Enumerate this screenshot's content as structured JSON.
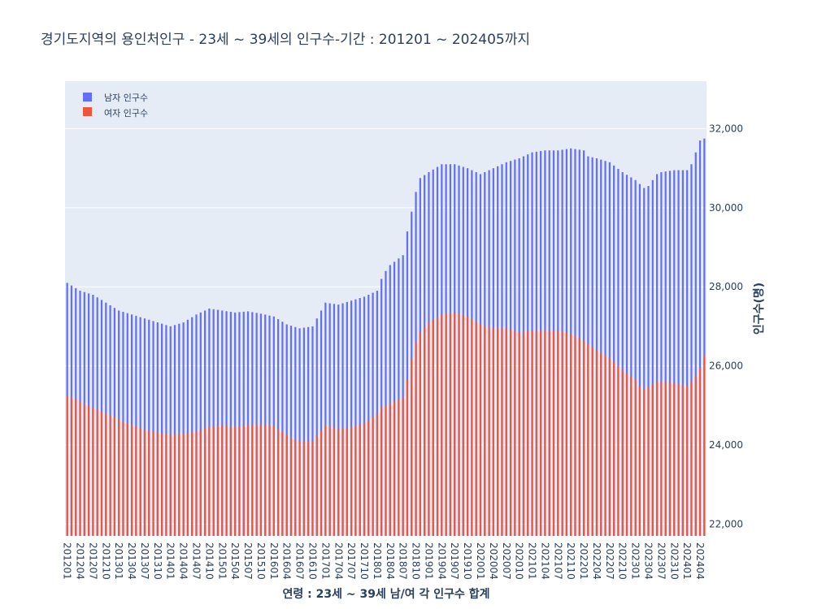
{
  "chart_data": {
    "type": "bar",
    "barmode": "overlay",
    "title": "경기도지역의 용인처인구 - 23세 ~ 39세의 인구수-기간 : 201201 ~ 202405까지",
    "xlabel": "연령 : 23세 ~ 39세 남/여 각 인구수 합계",
    "ylabel": "인구수(명)",
    "yaxis_side": "right",
    "ylim": [
      21700,
      33200
    ],
    "yticks": [
      22000,
      24000,
      26000,
      28000,
      30000,
      32000
    ],
    "ytick_labels": [
      "22,000",
      "24,000",
      "26,000",
      "28,000",
      "30,000",
      "32,000"
    ],
    "x_tick_labels": [
      "201201",
      "201204",
      "201207",
      "201210",
      "201301",
      "201304",
      "201307",
      "201310",
      "201401",
      "201404",
      "201407",
      "201410",
      "201501",
      "201504",
      "201507",
      "201510",
      "201601",
      "201604",
      "201607",
      "201610",
      "201701",
      "201704",
      "201707",
      "201710",
      "201801",
      "201804",
      "201807",
      "201810",
      "201901",
      "201904",
      "201907",
      "201910",
      "202001",
      "202004",
      "202007",
      "202010",
      "202101",
      "202104",
      "202107",
      "202110",
      "202201",
      "202204",
      "202207",
      "202210",
      "202301",
      "202304",
      "202307",
      "202310",
      "202401",
      "202404"
    ],
    "legend_position": "top-left",
    "colors": {
      "male": "#636efa",
      "female": "#ef553b",
      "plot_bg": "#e5ecf6",
      "grid": "#ffffff",
      "text": "#2a3f5f"
    },
    "start_month": "201201",
    "end_month": "202405",
    "series": [
      {
        "name": "남자 인구수",
        "color": "#636efa",
        "anchors": [
          [
            "201201",
            28100
          ],
          [
            "201204",
            27900
          ],
          [
            "201207",
            27800
          ],
          [
            "201210",
            27600
          ],
          [
            "201301",
            27400
          ],
          [
            "201304",
            27300
          ],
          [
            "201307",
            27200
          ],
          [
            "201310",
            27100
          ],
          [
            "201401",
            27000
          ],
          [
            "201404",
            27100
          ],
          [
            "201407",
            27300
          ],
          [
            "201410",
            27450
          ],
          [
            "201501",
            27400
          ],
          [
            "201504",
            27350
          ],
          [
            "201507",
            27380
          ],
          [
            "201510",
            27320
          ],
          [
            "201601",
            27250
          ],
          [
            "201604",
            27050
          ],
          [
            "201607",
            26950
          ],
          [
            "201610",
            27000
          ],
          [
            "201612",
            27400
          ],
          [
            "201701",
            27600
          ],
          [
            "201704",
            27550
          ],
          [
            "201707",
            27650
          ],
          [
            "201710",
            27750
          ],
          [
            "201801",
            27900
          ],
          [
            "201802",
            28200
          ],
          [
            "201803",
            28400
          ],
          [
            "201804",
            28550
          ],
          [
            "201807",
            28800
          ],
          [
            "201808",
            29400
          ],
          [
            "201809",
            29900
          ],
          [
            "201810",
            30400
          ],
          [
            "201811",
            30750
          ],
          [
            "201901",
            30900
          ],
          [
            "201904",
            31100
          ],
          [
            "201907",
            31100
          ],
          [
            "201910",
            31000
          ],
          [
            "202001",
            30850
          ],
          [
            "202004",
            31000
          ],
          [
            "202007",
            31150
          ],
          [
            "202010",
            31250
          ],
          [
            "202101",
            31400
          ],
          [
            "202104",
            31450
          ],
          [
            "202107",
            31450
          ],
          [
            "202110",
            31500
          ],
          [
            "202201",
            31450
          ],
          [
            "202202",
            31300
          ],
          [
            "202204",
            31250
          ],
          [
            "202207",
            31150
          ],
          [
            "202210",
            30900
          ],
          [
            "202301",
            30700
          ],
          [
            "202303",
            30500
          ],
          [
            "202304",
            30550
          ],
          [
            "202306",
            30850
          ],
          [
            "202307",
            30900
          ],
          [
            "202310",
            30950
          ],
          [
            "202401",
            30950
          ],
          [
            "202402",
            31100
          ],
          [
            "202403",
            31400
          ],
          [
            "202404",
            31700
          ],
          [
            "202405",
            31750
          ]
        ]
      },
      {
        "name": "여자 인구수",
        "color": "#ef553b",
        "anchors": [
          [
            "201201",
            25250
          ],
          [
            "201204",
            25100
          ],
          [
            "201207",
            24950
          ],
          [
            "201210",
            24800
          ],
          [
            "201301",
            24650
          ],
          [
            "201304",
            24500
          ],
          [
            "201307",
            24380
          ],
          [
            "201310",
            24320
          ],
          [
            "201401",
            24270
          ],
          [
            "201404",
            24280
          ],
          [
            "201407",
            24350
          ],
          [
            "201410",
            24450
          ],
          [
            "201501",
            24500
          ],
          [
            "201504",
            24450
          ],
          [
            "201507",
            24500
          ],
          [
            "201510",
            24520
          ],
          [
            "201601",
            24480
          ],
          [
            "201604",
            24250
          ],
          [
            "201607",
            24080
          ],
          [
            "201610",
            24100
          ],
          [
            "201701",
            24500
          ],
          [
            "201704",
            24400
          ],
          [
            "201707",
            24450
          ],
          [
            "201710",
            24550
          ],
          [
            "201801",
            24800
          ],
          [
            "201802",
            24950
          ],
          [
            "201804",
            25050
          ],
          [
            "201807",
            25200
          ],
          [
            "201808",
            25650
          ],
          [
            "201809",
            26200
          ],
          [
            "201810",
            26600
          ],
          [
            "201811",
            26850
          ],
          [
            "201901",
            27100
          ],
          [
            "201904",
            27300
          ],
          [
            "201907",
            27350
          ],
          [
            "201910",
            27250
          ],
          [
            "202001",
            27050
          ],
          [
            "202004",
            26950
          ],
          [
            "202007",
            26950
          ],
          [
            "202010",
            26850
          ],
          [
            "202101",
            26900
          ],
          [
            "202104",
            26900
          ],
          [
            "202107",
            26900
          ],
          [
            "202110",
            26800
          ],
          [
            "202201",
            26650
          ],
          [
            "202204",
            26400
          ],
          [
            "202207",
            26200
          ],
          [
            "202210",
            25900
          ],
          [
            "202301",
            25650
          ],
          [
            "202302",
            25500
          ],
          [
            "202303",
            25420
          ],
          [
            "202304",
            25450
          ],
          [
            "202306",
            25600
          ],
          [
            "202307",
            25600
          ],
          [
            "202310",
            25580
          ],
          [
            "202401",
            25480
          ],
          [
            "202402",
            25600
          ],
          [
            "202403",
            25750
          ],
          [
            "202404",
            25950
          ],
          [
            "202405",
            26280
          ]
        ]
      }
    ]
  }
}
